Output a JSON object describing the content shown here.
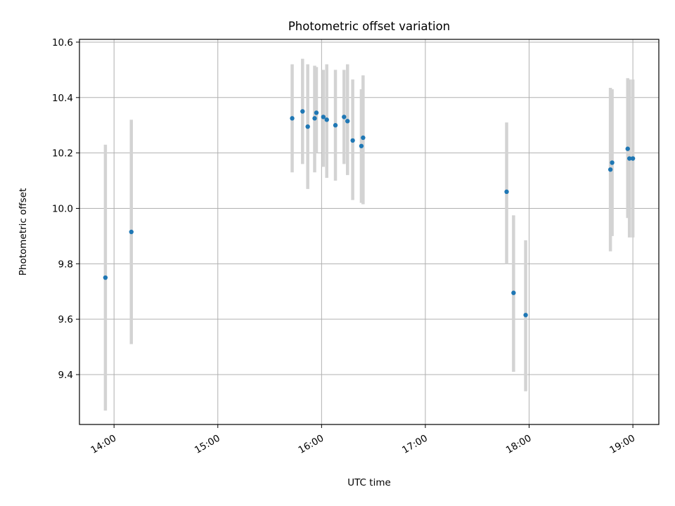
{
  "chart_data": {
    "type": "scatter",
    "title": "Photometric offset variation",
    "xlabel": "UTC time",
    "ylabel": "Photometric offset",
    "xlim": [
      "13:40",
      "19:15"
    ],
    "ylim": [
      9.22,
      10.61
    ],
    "x_ticks": [
      "14:00",
      "15:00",
      "16:00",
      "17:00",
      "18:00",
      "19:00"
    ],
    "y_ticks": [
      9.4,
      9.6,
      9.8,
      10.0,
      10.2,
      10.4,
      10.6
    ],
    "y_tick_labels": [
      "9.4",
      "9.6",
      "9.8",
      "10.0",
      "10.2",
      "10.4",
      "10.6"
    ],
    "grid": true,
    "marker_color": "#1f77b4",
    "errorbar_color": "#d3d3d3",
    "points": [
      {
        "x": "13:55",
        "y": 9.75,
        "err_low": 9.27,
        "err_high": 10.23
      },
      {
        "x": "14:10",
        "y": 9.915,
        "err_low": 9.51,
        "err_high": 10.32
      },
      {
        "x": "15:43",
        "y": 10.325,
        "err_low": 10.13,
        "err_high": 10.52
      },
      {
        "x": "15:49",
        "y": 10.35,
        "err_low": 10.16,
        "err_high": 10.54
      },
      {
        "x": "15:52",
        "y": 10.295,
        "err_low": 10.07,
        "err_high": 10.52
      },
      {
        "x": "15:56",
        "y": 10.325,
        "err_low": 10.13,
        "err_high": 10.515
      },
      {
        "x": "15:57",
        "y": 10.345,
        "err_low": 10.2,
        "err_high": 10.51
      },
      {
        "x": "16:01",
        "y": 10.33,
        "err_low": 10.15,
        "err_high": 10.5
      },
      {
        "x": "16:03",
        "y": 10.32,
        "err_low": 10.11,
        "err_high": 10.52
      },
      {
        "x": "16:08",
        "y": 10.3,
        "err_low": 10.1,
        "err_high": 10.5
      },
      {
        "x": "16:13",
        "y": 10.33,
        "err_low": 10.16,
        "err_high": 10.5
      },
      {
        "x": "16:15",
        "y": 10.315,
        "err_low": 10.12,
        "err_high": 10.52
      },
      {
        "x": "16:18",
        "y": 10.245,
        "err_low": 10.03,
        "err_high": 10.465
      },
      {
        "x": "16:23",
        "y": 10.225,
        "err_low": 10.02,
        "err_high": 10.43
      },
      {
        "x": "16:24",
        "y": 10.255,
        "err_low": 10.015,
        "err_high": 10.48
      },
      {
        "x": "17:47",
        "y": 10.06,
        "err_low": 9.8,
        "err_high": 10.31
      },
      {
        "x": "17:51",
        "y": 9.695,
        "err_low": 9.41,
        "err_high": 9.975
      },
      {
        "x": "17:58",
        "y": 9.615,
        "err_low": 9.34,
        "err_high": 9.885
      },
      {
        "x": "18:47",
        "y": 10.14,
        "err_low": 9.845,
        "err_high": 10.435
      },
      {
        "x": "18:48",
        "y": 10.165,
        "err_low": 9.9,
        "err_high": 10.43
      },
      {
        "x": "18:57",
        "y": 10.215,
        "err_low": 9.965,
        "err_high": 10.47
      },
      {
        "x": "18:58",
        "y": 10.18,
        "err_low": 9.895,
        "err_high": 10.465
      },
      {
        "x": "19:00",
        "y": 10.18,
        "err_low": 9.895,
        "err_high": 10.465
      }
    ]
  }
}
